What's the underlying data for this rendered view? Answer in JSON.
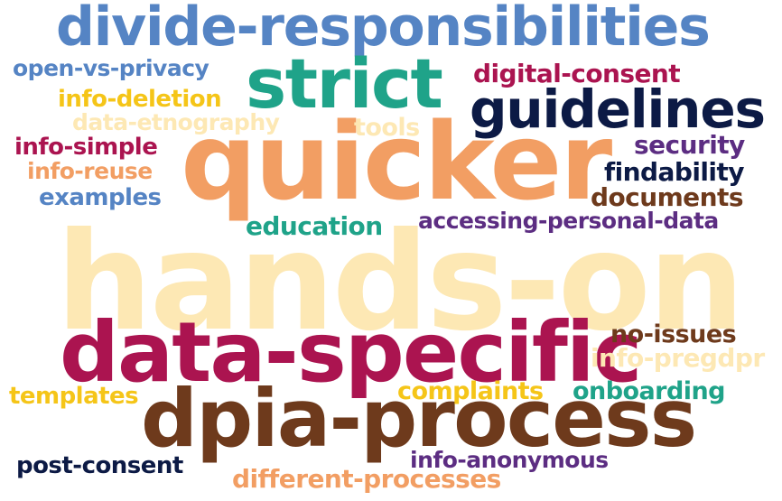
{
  "words": [
    {
      "text": "hands-on",
      "color": "#fde8b4"
    },
    {
      "text": "quicker",
      "color": "#f29e63"
    },
    {
      "text": "data-specific",
      "color": "#ab1450"
    },
    {
      "text": "dpia-process",
      "color": "#6e3a1c"
    },
    {
      "text": "divide-responsibilities",
      "color": "#5584c4"
    },
    {
      "text": "strict",
      "color": "#1fa389"
    },
    {
      "text": "guidelines",
      "color": "#0c1a45"
    },
    {
      "text": "open-vs-privacy",
      "color": "#5584c4"
    },
    {
      "text": "digital-consent",
      "color": "#ab1450"
    },
    {
      "text": "info-deletion",
      "color": "#f5c518"
    },
    {
      "text": "data-etnography",
      "color": "#fde8b4"
    },
    {
      "text": "tools",
      "color": "#fde8b4"
    },
    {
      "text": "info-simple",
      "color": "#ab1450"
    },
    {
      "text": "security",
      "color": "#5c2d82"
    },
    {
      "text": "info-reuse",
      "color": "#f29e63"
    },
    {
      "text": "findability",
      "color": "#0c1a45"
    },
    {
      "text": "examples",
      "color": "#5584c4"
    },
    {
      "text": "documents",
      "color": "#6e3a1c"
    },
    {
      "text": "education",
      "color": "#1fa389"
    },
    {
      "text": "accessing-personal-data",
      "color": "#5c2d82"
    },
    {
      "text": "no-issues",
      "color": "#6e3a1c"
    },
    {
      "text": "info-pregdpr",
      "color": "#fde8b4"
    },
    {
      "text": "templates",
      "color": "#f5c518"
    },
    {
      "text": "complaints",
      "color": "#f5c518"
    },
    {
      "text": "onboarding",
      "color": "#1fa389"
    },
    {
      "text": "post-consent",
      "color": "#0c1a45"
    },
    {
      "text": "info-anonymous",
      "color": "#5c2d82"
    },
    {
      "text": "different-processes",
      "color": "#f29e63"
    }
  ]
}
